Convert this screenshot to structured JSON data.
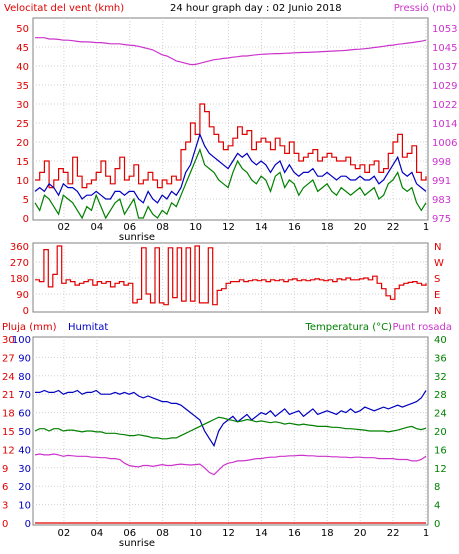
{
  "colors": {
    "wind": "#e00000",
    "wind_avg": "#0000c0",
    "wind_gust": "#008000",
    "pressure": "#cc33cc",
    "dir": "#e00000",
    "humidity": "#0000c0",
    "temperature": "#008000",
    "dewpoint": "#cc33cc",
    "rain": "#e00000",
    "grid": "#d0d0d0",
    "axis_left_top": "#e00000",
    "axis_right_top": "#cc33cc",
    "axis_dir": "#e00000",
    "axis_rain": "#e00000",
    "axis_hum": "#0000c0",
    "axis_temp": "#008000"
  },
  "chart_data": [
    {
      "type": "line",
      "title": "24 hour graph day : 02 Junio 2018",
      "left_label": "Velocitat del vent (kmh)",
      "right_label": "Pressió (mb)",
      "x_ticks": [
        "02",
        "04",
        "06",
        "08",
        "10",
        "12",
        "14",
        "16",
        "18",
        "20",
        "22",
        "1"
      ],
      "x_sub_label": "sunrise",
      "yleft_ticks": [
        "50",
        "45",
        "40",
        "35",
        "30",
        "25",
        "20",
        "15",
        "10",
        "5",
        "0"
      ],
      "yleft_lim": [
        0,
        50
      ],
      "yright_ticks": [
        "1053",
        "1045",
        "1037",
        "1029",
        "1022",
        "1014",
        "1006",
        "998",
        "991",
        "983",
        "975"
      ],
      "yright_lim": [
        975,
        1053
      ],
      "series": [
        {
          "key": "wind",
          "values": [
            10,
            12,
            15,
            8,
            10,
            13,
            12,
            9,
            16,
            11,
            8,
            9,
            10,
            12,
            15,
            11,
            9,
            13,
            16,
            10,
            11,
            14,
            9,
            10,
            12,
            10,
            8,
            10,
            9,
            11,
            10,
            18,
            20,
            25,
            22,
            30,
            28,
            24,
            22,
            20,
            18,
            19,
            21,
            24,
            22,
            23,
            18,
            20,
            21,
            20,
            18,
            21,
            19,
            17,
            20,
            17,
            15,
            16,
            17,
            18,
            15,
            16,
            17,
            16,
            15,
            15,
            16,
            14,
            13,
            14,
            12,
            14,
            15,
            12,
            13,
            17,
            20,
            22,
            16,
            17,
            19,
            12,
            10,
            11
          ]
        },
        {
          "key": "wind_avg",
          "values": [
            7,
            8,
            7,
            9,
            8,
            6,
            9,
            8,
            8,
            7,
            5,
            6,
            6,
            7,
            6,
            5,
            5,
            7,
            7,
            6,
            7,
            7,
            5,
            4,
            7,
            5,
            4,
            6,
            5,
            7,
            6,
            8,
            12,
            14,
            18,
            22,
            19,
            17,
            16,
            15,
            14,
            13,
            15,
            17,
            16,
            17,
            15,
            14,
            15,
            14,
            12,
            14,
            15,
            12,
            14,
            12,
            11,
            12,
            12,
            13,
            11,
            11,
            12,
            11,
            10,
            11,
            11,
            10,
            10,
            11,
            10,
            10,
            11,
            9,
            10,
            12,
            14,
            16,
            12,
            11,
            12,
            9,
            8,
            7
          ]
        },
        {
          "key": "wind_gust",
          "values": [
            4,
            2,
            6,
            5,
            3,
            1,
            6,
            5,
            4,
            2,
            0,
            3,
            2,
            6,
            3,
            0,
            2,
            4,
            5,
            1,
            3,
            5,
            0,
            0,
            3,
            1,
            0,
            2,
            1,
            4,
            3,
            6,
            9,
            12,
            15,
            18,
            14,
            13,
            12,
            10,
            9,
            8,
            12,
            15,
            13,
            12,
            10,
            9,
            11,
            10,
            7,
            11,
            12,
            8,
            10,
            9,
            6,
            8,
            9,
            10,
            7,
            8,
            9,
            7,
            6,
            8,
            7,
            6,
            7,
            8,
            6,
            7,
            8,
            5,
            6,
            9,
            10,
            12,
            8,
            7,
            8,
            4,
            2,
            4
          ]
        },
        {
          "key": "pressure",
          "values": [
            1049,
            1049,
            1049,
            1048.5,
            1048.5,
            1048.3,
            1048,
            1048,
            1047.8,
            1047.5,
            1047.3,
            1047.3,
            1047.2,
            1047,
            1047,
            1046.8,
            1046.5,
            1046.5,
            1046.5,
            1046.2,
            1046,
            1045.8,
            1045.5,
            1045,
            1044.5,
            1044,
            1043,
            1042,
            1041.5,
            1040.5,
            1039.5,
            1039,
            1038.5,
            1038,
            1038,
            1038.5,
            1039,
            1039.5,
            1040,
            1040.2,
            1040.5,
            1040.7,
            1041,
            1041.2,
            1041.5,
            1041.5,
            1041.8,
            1042,
            1042.2,
            1042.3,
            1042.4,
            1042.5,
            1042.5,
            1042.6,
            1042.7,
            1042.8,
            1042.9,
            1043,
            1043,
            1043.1,
            1043.2,
            1043.3,
            1043.4,
            1043.5,
            1043.6,
            1043.7,
            1043.8,
            1044,
            1044.2,
            1044.3,
            1044.5,
            1044.7,
            1045,
            1045.2,
            1045.5,
            1045.8,
            1046,
            1046.3,
            1046.5,
            1046.8,
            1047,
            1047.3,
            1047.6,
            1048
          ]
        }
      ]
    },
    {
      "type": "line",
      "left_ticks": [
        "360",
        "270",
        "180",
        "90",
        "0"
      ],
      "ylim": [
        0,
        360
      ],
      "right_ticks": [
        "N",
        "W",
        "S",
        "E",
        "N"
      ],
      "series": [
        {
          "key": "dir",
          "values": [
            170,
            160,
            340,
            130,
            200,
            360,
            150,
            170,
            160,
            140,
            150,
            160,
            170,
            140,
            160,
            150,
            160,
            130,
            150,
            160,
            140,
            150,
            40,
            60,
            350,
            90,
            40,
            350,
            40,
            30,
            350,
            70,
            350,
            50,
            350,
            50,
            360,
            40,
            40,
            350,
            30,
            110,
            120,
            150,
            160,
            160,
            170,
            160,
            165,
            170,
            165,
            170,
            160,
            170,
            165,
            170,
            160,
            170,
            175,
            165,
            170,
            165,
            170,
            175,
            170,
            165,
            170,
            160,
            175,
            170,
            180,
            170,
            170,
            175,
            180,
            170,
            190,
            150,
            120,
            80,
            60,
            120,
            140,
            150,
            155,
            160,
            150,
            140,
            150
          ]
        }
      ]
    },
    {
      "type": "line",
      "left_label": "Pluja (mm)",
      "humidity_label": "Humitat",
      "right_label": "Temperatura (°C)",
      "right_label_2": "Punt rosada",
      "x_ticks": [
        "02",
        "04",
        "06",
        "08",
        "10",
        "12",
        "14",
        "16",
        "18",
        "20",
        "22",
        "1"
      ],
      "x_sub_label": "sunrise",
      "rain_ticks": [
        "30",
        "27",
        "24",
        "21",
        "18",
        "15",
        "12",
        "9",
        "6",
        "3",
        "0"
      ],
      "rain_lim": [
        0,
        30
      ],
      "hum_ticks": [
        "100",
        "90",
        "80",
        "70",
        "60",
        "50",
        "40",
        "30",
        "20",
        "10",
        "0"
      ],
      "hum_lim": [
        0,
        100
      ],
      "temp_ticks": [
        "40",
        "36",
        "32",
        "28",
        "24",
        "20",
        "16",
        "12",
        "8",
        "4",
        "0"
      ],
      "temp_lim": [
        0,
        40
      ],
      "series": [
        {
          "key": "humidity",
          "axis": "hum",
          "values": [
            71,
            71,
            72,
            71,
            71,
            72,
            70,
            71,
            71,
            72,
            70,
            71,
            71,
            72,
            70,
            70,
            70,
            71,
            70,
            71,
            70,
            71,
            69,
            68,
            69,
            68,
            67,
            66,
            66,
            65,
            65,
            64,
            62,
            60,
            58,
            56,
            50,
            46,
            42,
            50,
            54,
            56,
            58,
            55,
            57,
            59,
            56,
            58,
            60,
            59,
            61,
            58,
            60,
            62,
            59,
            60,
            61,
            58,
            60,
            62,
            59,
            60,
            61,
            60,
            59,
            61,
            60,
            62,
            60,
            61,
            63,
            62,
            61,
            62,
            63,
            62,
            63,
            64,
            63,
            64,
            65,
            66,
            68,
            72
          ]
        },
        {
          "key": "temperature",
          "axis": "temp",
          "values": [
            20,
            20.5,
            20.5,
            20,
            20.5,
            20.5,
            20,
            20.2,
            20.2,
            20,
            19.8,
            20,
            20,
            19.8,
            19.8,
            19.5,
            19.5,
            19.5,
            19.3,
            19.2,
            19,
            19,
            19.2,
            19,
            18.8,
            18.5,
            18.5,
            18.3,
            18.3,
            18.5,
            18.5,
            19,
            19.5,
            20,
            20.5,
            21,
            21.5,
            22,
            22.5,
            23,
            22.8,
            22.5,
            22.3,
            22,
            22.2,
            22.5,
            22.3,
            22,
            22.2,
            22,
            21.8,
            22,
            21.8,
            21.5,
            21.7,
            21.5,
            21.3,
            21.5,
            21.3,
            21.2,
            21,
            21,
            21,
            20.8,
            20.8,
            20.7,
            20.5,
            20.5,
            20.4,
            20.3,
            20.2,
            20,
            20,
            20,
            20,
            19.8,
            20,
            20.2,
            20.5,
            20.8,
            21,
            20.5,
            20.3,
            20.6
          ]
        },
        {
          "key": "dewpoint",
          "axis": "temp",
          "values": [
            14.8,
            15,
            14.8,
            14.8,
            15,
            14.8,
            14.5,
            14.7,
            14.6,
            14.5,
            14.5,
            14.5,
            14.3,
            14.3,
            14.2,
            14.2,
            14,
            14,
            13.8,
            13,
            12.5,
            12.3,
            12.2,
            12.5,
            12.5,
            12.3,
            12.5,
            12.7,
            12.5,
            12.5,
            12.7,
            12.8,
            12.7,
            12.6,
            12.7,
            12.8,
            12,
            11,
            10.5,
            11.5,
            12.5,
            13,
            13.2,
            13.5,
            13.5,
            13.6,
            13.8,
            14,
            14,
            14.2,
            14.3,
            14.3,
            14.5,
            14.5,
            14.6,
            14.6,
            14.7,
            14.7,
            14.6,
            14.6,
            14.5,
            14.5,
            14.5,
            14.4,
            14.4,
            14.3,
            14.3,
            14.2,
            14.3,
            14.3,
            14.2,
            14.2,
            14.2,
            14,
            14,
            14,
            14,
            13.8,
            13.8,
            13.8,
            13.5,
            13.5,
            13.8,
            14.5
          ]
        },
        {
          "key": "rain",
          "axis": "rain",
          "values": [
            0,
            0,
            0,
            0,
            0,
            0,
            0,
            0,
            0,
            0,
            0,
            0
          ]
        }
      ]
    }
  ]
}
